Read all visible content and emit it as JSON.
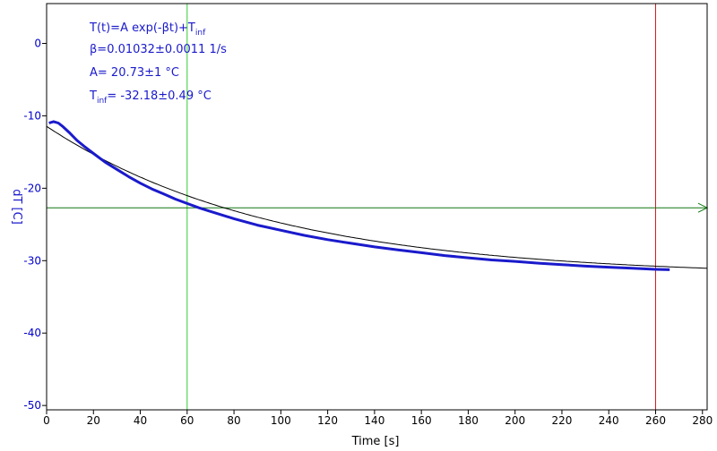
{
  "chart_data": {
    "type": "line",
    "xlabel": "Time [s]",
    "ylabel": "dT [C]",
    "xlim": [
      0,
      282
    ],
    "ylim": [
      -50.6,
      5.5
    ],
    "xticks": [
      0,
      20,
      40,
      60,
      80,
      100,
      120,
      140,
      160,
      180,
      200,
      220,
      240,
      260,
      280
    ],
    "yticks": [
      0,
      -10,
      -20,
      -30,
      -40,
      -50
    ],
    "grid": false,
    "annotations": {
      "line1_main": "T(t)=A exp(-βt)+T",
      "line1_sub": "inf",
      "line2": "β=0.01032±0.0011 1/s",
      "line3": "A= 20.73±1 °C",
      "line4_pre": "T",
      "line4_sub": "inf",
      "line4_post": "= -32.18±0.49 °C"
    },
    "cursors": {
      "vertical_green_x": 60,
      "vertical_red_x": 260,
      "horizontal_green_y": -22.7
    },
    "fit": {
      "A": 20.73,
      "beta": 0.01032,
      "T_inf": -32.18,
      "x_range": [
        0,
        282
      ]
    },
    "series": [
      {
        "x": [
          1,
          3,
          5,
          7,
          10,
          13,
          16,
          20,
          25,
          30,
          35,
          40,
          45,
          50,
          55,
          60,
          65,
          70,
          80,
          90,
          100,
          110,
          120,
          130,
          140,
          150,
          160,
          170,
          180,
          190,
          200,
          210,
          220,
          230,
          240,
          250,
          260,
          266
        ],
        "y": [
          -11.0,
          -10.8,
          -11.0,
          -11.5,
          -12.4,
          -13.4,
          -14.2,
          -15.2,
          -16.4,
          -17.4,
          -18.4,
          -19.3,
          -20.1,
          -20.8,
          -21.5,
          -22.1,
          -22.7,
          -23.2,
          -24.2,
          -25.1,
          -25.8,
          -26.5,
          -27.1,
          -27.6,
          -28.1,
          -28.5,
          -28.9,
          -29.3,
          -29.6,
          -29.9,
          -30.1,
          -30.35,
          -30.55,
          -30.75,
          -30.9,
          -31.05,
          -31.2,
          -31.25
        ]
      }
    ]
  }
}
